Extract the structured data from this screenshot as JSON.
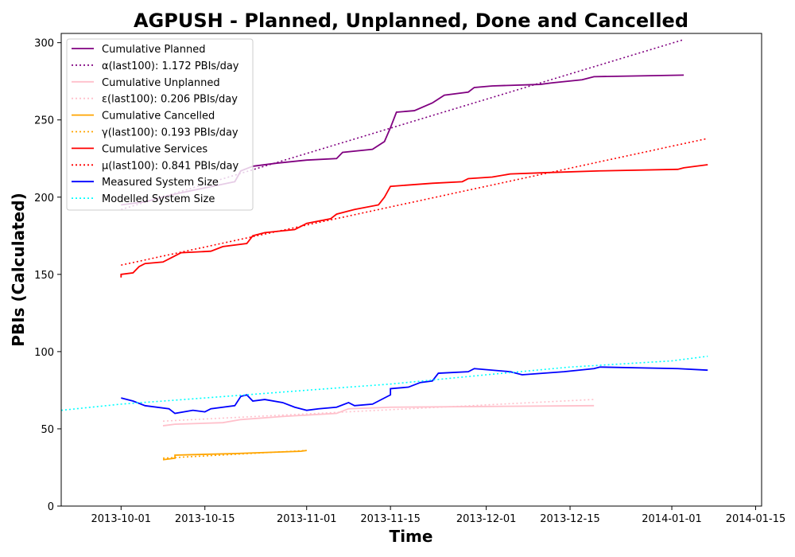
{
  "chart_data": {
    "type": "line",
    "title": "AGPUSH - Planned, Unplanned, Done  and Cancelled",
    "xlabel": "Time",
    "ylabel": "PBIs (Calculated)",
    "xlim": [
      "2013-09-21",
      "2014-01-16"
    ],
    "ylim": [
      0,
      306
    ],
    "x_ticks": [
      "2013-10-01",
      "2013-10-15",
      "2013-11-01",
      "2013-11-15",
      "2013-12-01",
      "2013-12-15",
      "2014-01-01",
      "2014-01-15"
    ],
    "y_ticks": [
      0,
      50,
      100,
      150,
      200,
      250,
      300
    ],
    "grid": false,
    "legend_position": "top-left",
    "series": [
      {
        "name": "Cumulative Planned",
        "color": "#800080",
        "style": "solid",
        "points": [
          [
            "2013-10-01",
            195
          ],
          [
            "2013-10-05",
            197
          ],
          [
            "2013-10-10",
            202
          ],
          [
            "2013-10-15",
            206
          ],
          [
            "2013-10-20",
            210
          ],
          [
            "2013-10-21",
            217
          ],
          [
            "2013-10-23",
            220
          ],
          [
            "2013-10-27",
            222
          ],
          [
            "2013-11-01",
            224
          ],
          [
            "2013-11-06",
            225
          ],
          [
            "2013-11-07",
            229
          ],
          [
            "2013-11-12",
            231
          ],
          [
            "2013-11-14",
            236
          ],
          [
            "2013-11-15",
            245
          ],
          [
            "2013-11-16",
            255
          ],
          [
            "2013-11-19",
            256
          ],
          [
            "2013-11-22",
            261
          ],
          [
            "2013-11-24",
            266
          ],
          [
            "2013-11-28",
            268
          ],
          [
            "2013-11-29",
            271
          ],
          [
            "2013-12-02",
            272
          ],
          [
            "2013-12-10",
            273
          ],
          [
            "2013-12-12",
            274
          ],
          [
            "2013-12-17",
            276
          ],
          [
            "2013-12-19",
            278
          ],
          [
            "2014-01-03",
            279
          ]
        ]
      },
      {
        "name": "α(last100): 1.172 PBIs/day",
        "color": "#800080",
        "style": "dotted",
        "points": [
          [
            "2013-10-01",
            192
          ],
          [
            "2014-01-03",
            302
          ]
        ]
      },
      {
        "name": "Cumulative Unplanned",
        "color": "#ffc0cb",
        "style": "solid",
        "points": [
          [
            "2013-10-08",
            52
          ],
          [
            "2013-10-10",
            53
          ],
          [
            "2013-10-18",
            54
          ],
          [
            "2013-10-21",
            56
          ],
          [
            "2013-10-28",
            58
          ],
          [
            "2013-11-06",
            60
          ],
          [
            "2013-11-08",
            63
          ],
          [
            "2013-11-15",
            64
          ],
          [
            "2013-12-01",
            64.5
          ],
          [
            "2013-12-19",
            65
          ]
        ]
      },
      {
        "name": "ε(last100): 0.206 PBIs/day",
        "color": "#ffc0cb",
        "style": "dotted",
        "points": [
          [
            "2013-10-08",
            55
          ],
          [
            "2013-12-19",
            69
          ]
        ]
      },
      {
        "name": "Cumulative Cancelled",
        "color": "#ffa500",
        "style": "solid",
        "points": [
          [
            "2013-10-08",
            30
          ],
          [
            "2013-10-10",
            31
          ],
          [
            "2013-10-10",
            33
          ],
          [
            "2013-10-20",
            34
          ],
          [
            "2013-10-31",
            35.5
          ],
          [
            "2013-11-01",
            36
          ]
        ]
      },
      {
        "name": "γ(last100): 0.193 PBIs/day",
        "color": "#ffa500",
        "style": "dotted",
        "points": [
          [
            "2013-10-08",
            31
          ],
          [
            "2013-11-01",
            36
          ]
        ]
      },
      {
        "name": "Cumulative Services",
        "color": "#ff0000",
        "style": "solid",
        "points": [
          [
            "2013-10-01",
            148
          ],
          [
            "2013-10-01",
            150
          ],
          [
            "2013-10-03",
            151
          ],
          [
            "2013-10-04",
            155
          ],
          [
            "2013-10-05",
            157
          ],
          [
            "2013-10-08",
            158
          ],
          [
            "2013-10-10",
            162
          ],
          [
            "2013-10-11",
            164
          ],
          [
            "2013-10-16",
            165
          ],
          [
            "2013-10-18",
            168
          ],
          [
            "2013-10-22",
            170
          ],
          [
            "2013-10-23",
            175
          ],
          [
            "2013-10-25",
            177
          ],
          [
            "2013-10-30",
            179
          ],
          [
            "2013-11-01",
            183
          ],
          [
            "2013-11-05",
            186
          ],
          [
            "2013-11-06",
            189
          ],
          [
            "2013-11-09",
            192
          ],
          [
            "2013-11-13",
            195
          ],
          [
            "2013-11-14",
            200
          ],
          [
            "2013-11-15",
            207
          ],
          [
            "2013-11-22",
            209
          ],
          [
            "2013-11-27",
            210
          ],
          [
            "2013-11-28",
            212
          ],
          [
            "2013-12-02",
            213
          ],
          [
            "2013-12-05",
            215
          ],
          [
            "2013-12-12",
            216
          ],
          [
            "2013-12-20",
            217
          ],
          [
            "2014-01-02",
            218
          ],
          [
            "2014-01-03",
            219
          ],
          [
            "2014-01-07",
            221
          ]
        ]
      },
      {
        "name": "μ(last100): 0.841 PBIs/day",
        "color": "#ff0000",
        "style": "dotted",
        "points": [
          [
            "2013-10-01",
            156
          ],
          [
            "2014-01-07",
            238
          ]
        ]
      },
      {
        "name": "Measured System Size",
        "color": "#0000ff",
        "style": "solid",
        "points": [
          [
            "2013-10-01",
            70
          ],
          [
            "2013-10-03",
            68
          ],
          [
            "2013-10-05",
            65
          ],
          [
            "2013-10-09",
            63
          ],
          [
            "2013-10-10",
            60
          ],
          [
            "2013-10-13",
            62
          ],
          [
            "2013-10-15",
            61
          ],
          [
            "2013-10-16",
            63
          ],
          [
            "2013-10-20",
            65
          ],
          [
            "2013-10-21",
            71
          ],
          [
            "2013-10-22",
            72
          ],
          [
            "2013-10-23",
            68
          ],
          [
            "2013-10-25",
            69
          ],
          [
            "2013-10-28",
            67
          ],
          [
            "2013-10-30",
            64
          ],
          [
            "2013-11-01",
            62
          ],
          [
            "2013-11-03",
            63
          ],
          [
            "2013-11-06",
            64
          ],
          [
            "2013-11-08",
            67
          ],
          [
            "2013-11-09",
            65
          ],
          [
            "2013-11-12",
            66
          ],
          [
            "2013-11-13",
            68
          ],
          [
            "2013-11-15",
            72
          ],
          [
            "2013-11-15",
            76
          ],
          [
            "2013-11-18",
            77
          ],
          [
            "2013-11-20",
            80
          ],
          [
            "2013-11-22",
            81
          ],
          [
            "2013-11-23",
            86
          ],
          [
            "2013-11-28",
            87
          ],
          [
            "2013-11-29",
            89
          ],
          [
            "2013-12-05",
            87
          ],
          [
            "2013-12-07",
            85
          ],
          [
            "2013-12-14",
            87
          ],
          [
            "2013-12-19",
            89
          ],
          [
            "2013-12-20",
            90
          ],
          [
            "2014-01-02",
            89
          ],
          [
            "2014-01-07",
            88
          ]
        ]
      },
      {
        "name": "Modelled System Size",
        "color": "#00ffff",
        "style": "dotted",
        "points": [
          [
            "2013-09-21",
            62
          ],
          [
            "2013-10-01",
            66
          ],
          [
            "2013-10-15",
            70
          ],
          [
            "2013-11-01",
            75
          ],
          [
            "2013-11-15",
            79
          ],
          [
            "2013-12-01",
            85
          ],
          [
            "2013-12-15",
            90
          ],
          [
            "2014-01-01",
            94
          ],
          [
            "2014-01-07",
            97
          ]
        ]
      }
    ]
  }
}
